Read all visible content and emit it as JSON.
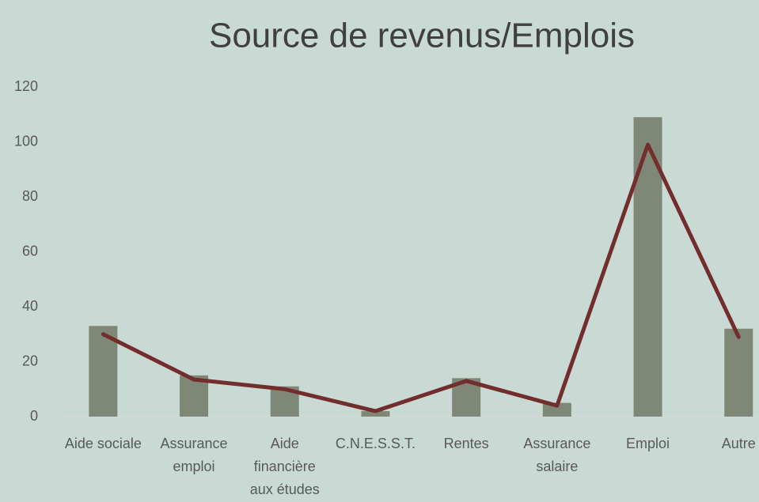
{
  "chart_data": {
    "type": "bar-line",
    "title": "Source de revenus/Emplois",
    "categories": [
      "Aide sociale",
      "Assurance emploi",
      "Aide financière aux études",
      "C.N.E.S.S.T.",
      "Rentes",
      "Assurance salaire",
      "Emploi",
      "Autre"
    ],
    "series": [
      {
        "type": "bar",
        "color": "#7f8877",
        "values": [
          33,
          15,
          11,
          2,
          14,
          5,
          109,
          32
        ]
      },
      {
        "type": "line",
        "color": "#722d2d",
        "values": [
          30,
          13.5,
          10,
          2,
          13,
          4,
          99,
          29
        ]
      }
    ],
    "ylim": [
      0,
      120
    ],
    "yticks": [
      0,
      20,
      40,
      60,
      80,
      100,
      120
    ],
    "grid": false
  }
}
